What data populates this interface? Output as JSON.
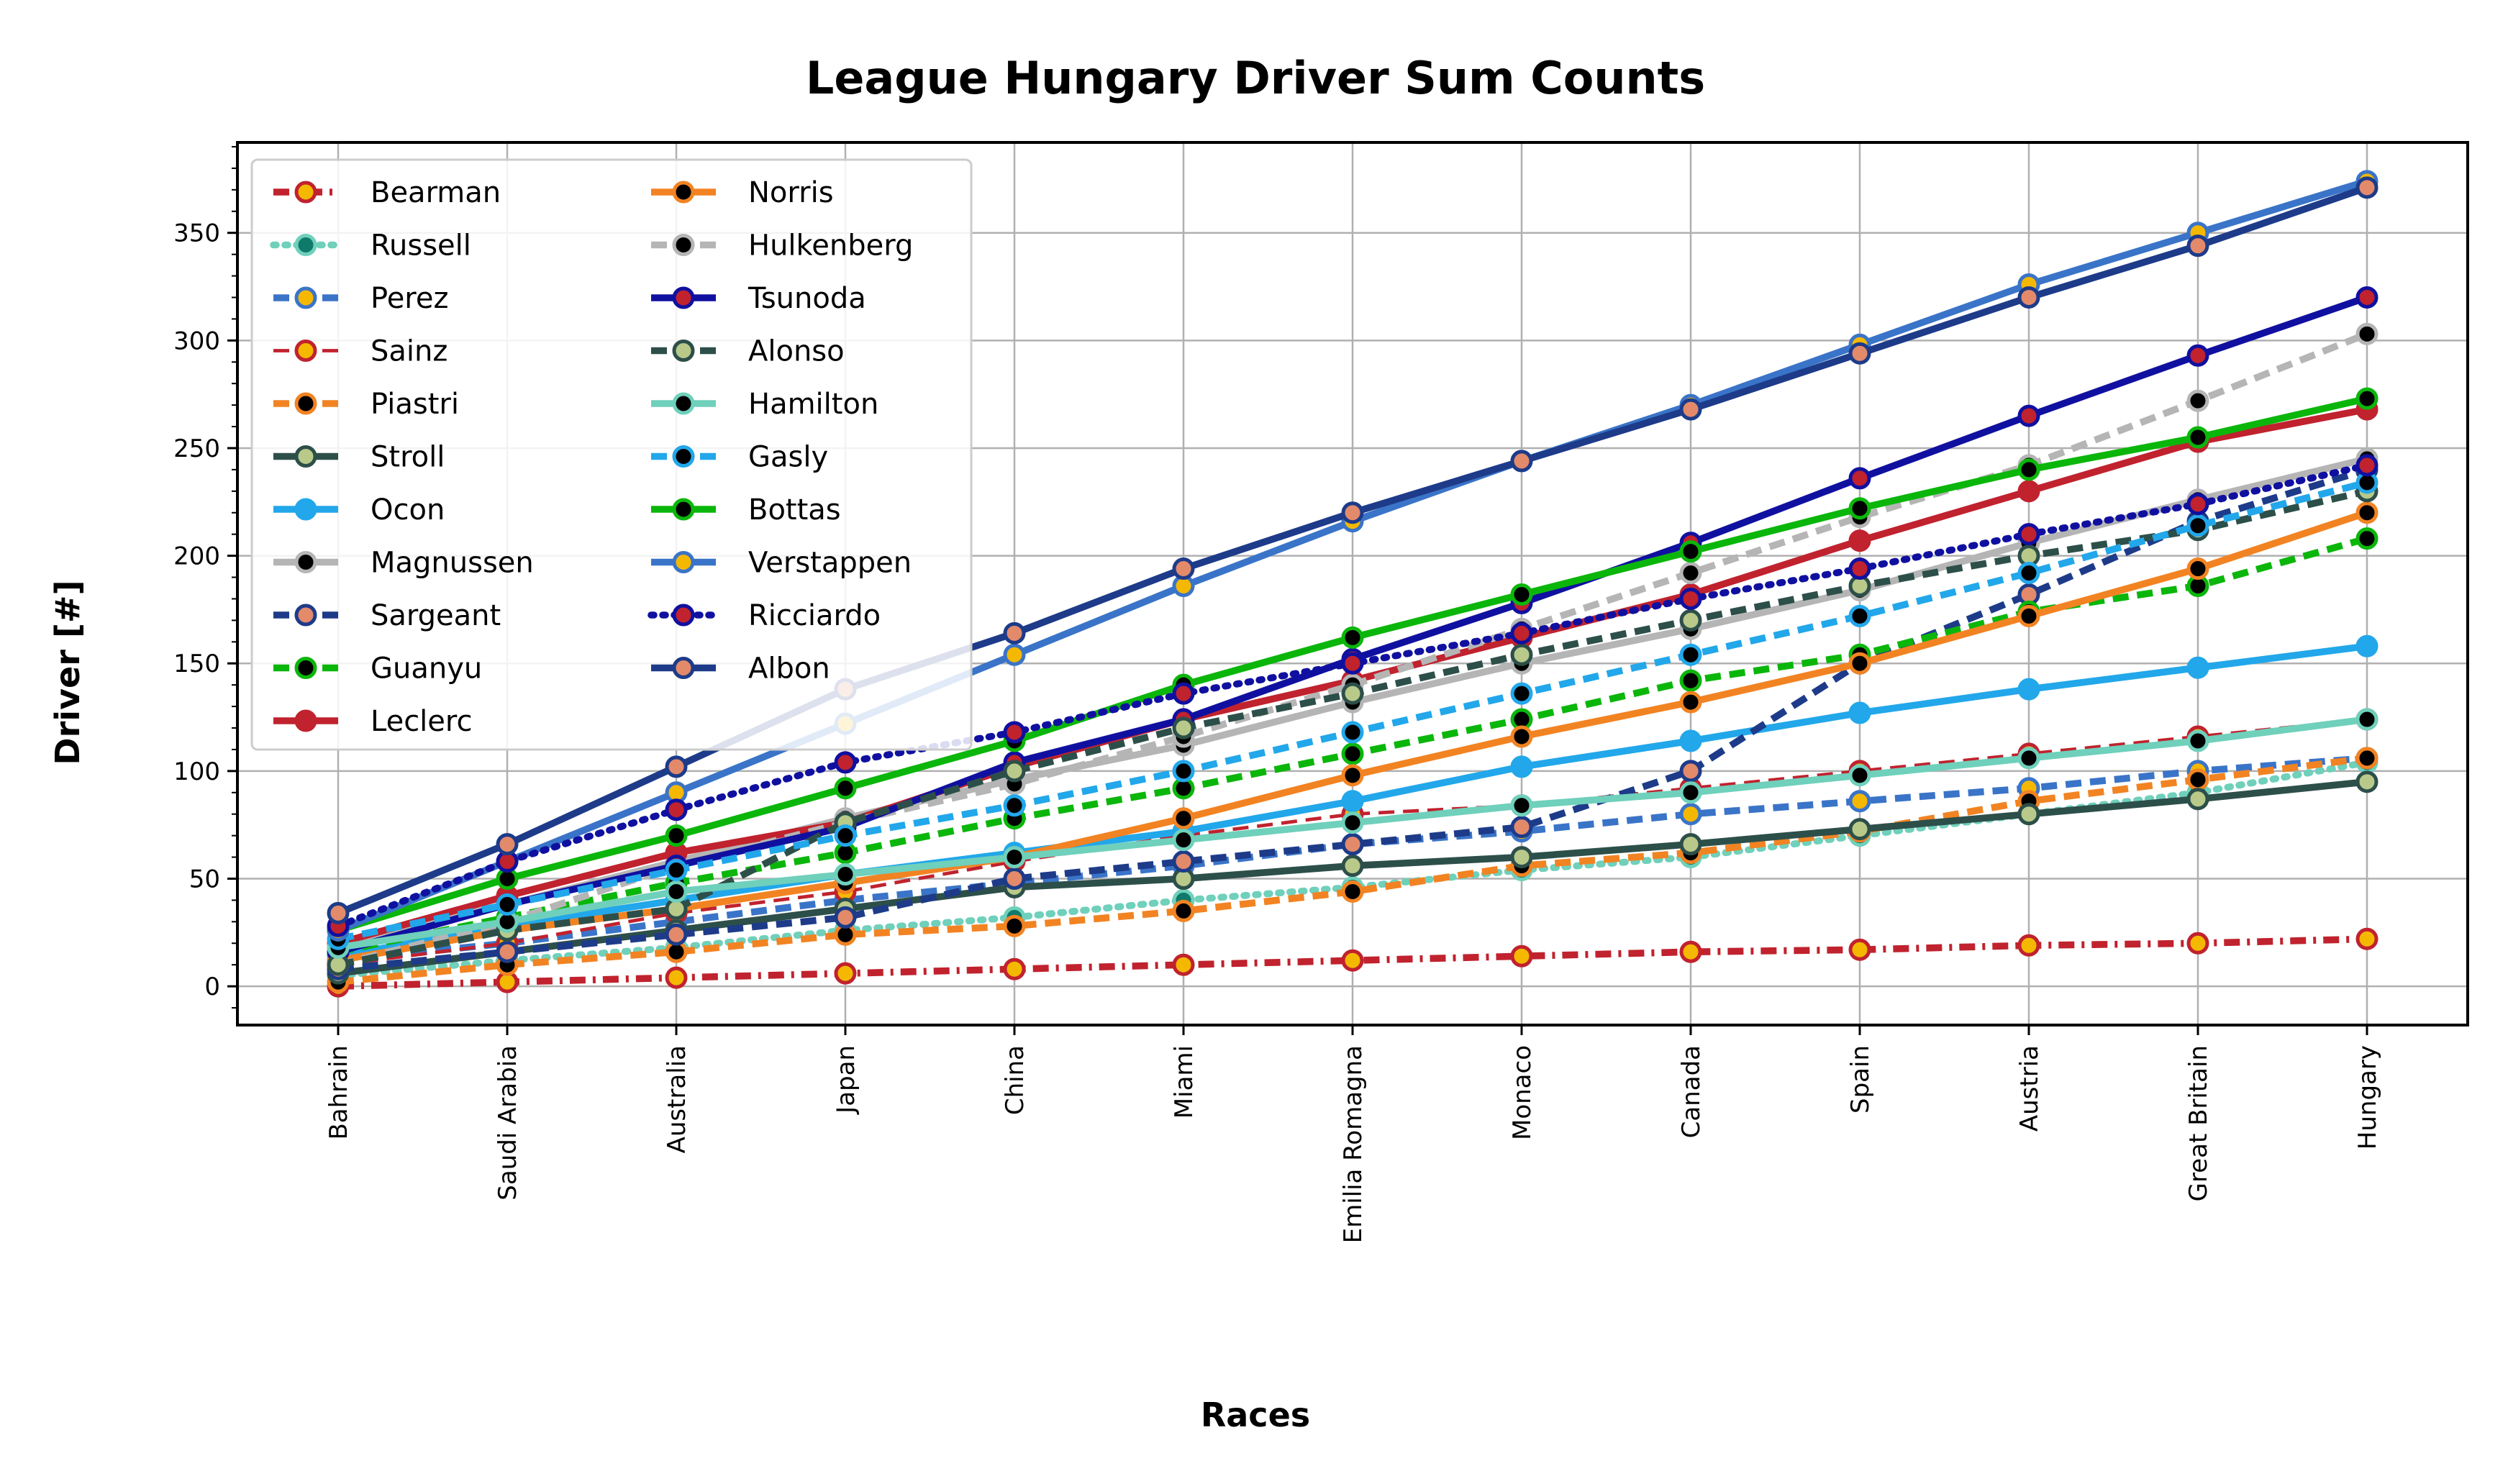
{
  "chart_data": {
    "type": "line",
    "title": "League Hungary Driver Sum Counts",
    "xlabel": "Races",
    "ylabel": "Driver [#]",
    "ylim": [
      -18,
      392
    ],
    "yticks": [
      0,
      50,
      100,
      150,
      200,
      250,
      300,
      350
    ],
    "grid": true,
    "legend_position": "top-left",
    "categories": [
      "Bahrain",
      "Saudi Arabia",
      "Australia",
      "Japan",
      "China",
      "Miami",
      "Emilia Romagna",
      "Monaco",
      "Canada",
      "Spain",
      "Austria",
      "Great Britain",
      "Hungary"
    ],
    "series": [
      {
        "name": "Bearman",
        "color": "#c0222e",
        "marker_fill": "#f5b800",
        "dash": "dashdot",
        "width": 3,
        "values": [
          0,
          2,
          4,
          6,
          8,
          10,
          12,
          14,
          16,
          17,
          19,
          20,
          22
        ]
      },
      {
        "name": "Russell",
        "color": "#6fd0bb",
        "marker_fill": "#0f7a6a",
        "dash": "dot",
        "width": 3,
        "values": [
          5,
          12,
          18,
          26,
          32,
          40,
          46,
          54,
          60,
          70,
          80,
          90,
          104
        ]
      },
      {
        "name": "Perez",
        "color": "#3a74c8",
        "marker_fill": "#f5b800",
        "dash": "dash",
        "width": 3,
        "values": [
          12,
          20,
          30,
          40,
          48,
          56,
          66,
          72,
          80,
          86,
          92,
          100,
          106
        ]
      },
      {
        "name": "Sainz",
        "color": "#c0222e",
        "marker_fill": "#f5b800",
        "dash": "dash",
        "width": 1.5,
        "values": [
          10,
          20,
          34,
          44,
          58,
          70,
          80,
          84,
          92,
          100,
          108,
          116,
          124
        ]
      },
      {
        "name": "Piastri",
        "color": "#f28322",
        "marker_fill": "#000000",
        "dash": "dash",
        "width": 3,
        "values": [
          2,
          10,
          16,
          24,
          28,
          35,
          44,
          56,
          62,
          72,
          86,
          96,
          106
        ]
      },
      {
        "name": "Stroll",
        "color": "#2d4f4a",
        "marker_fill": "#b8c98a",
        "dash": "solid",
        "width": 3,
        "values": [
          6,
          16,
          26,
          36,
          46,
          50,
          56,
          60,
          66,
          73,
          80,
          87,
          95
        ]
      },
      {
        "name": "Ocon",
        "color": "#22a7ea",
        "marker_fill": "#22a7ea",
        "dash": "solid",
        "width": 3,
        "values": [
          14,
          28,
          40,
          52,
          62,
          72,
          86,
          102,
          114,
          127,
          138,
          148,
          158
        ]
      },
      {
        "name": "Magnussen",
        "color": "#b5b5b5",
        "marker_fill": "#000000",
        "dash": "solid",
        "width": 3,
        "values": [
          20,
          38,
          58,
          78,
          96,
          112,
          132,
          150,
          166,
          184,
          206,
          226,
          245
        ]
      },
      {
        "name": "Sargeant",
        "color": "#1d3b89",
        "marker_fill": "#e38a6b",
        "dash": "dash",
        "width": 3,
        "values": [
          8,
          16,
          24,
          32,
          50,
          58,
          66,
          74,
          100,
          150,
          182,
          216,
          240
        ]
      },
      {
        "name": "Guanyu",
        "color": "#0bb60b",
        "marker_fill": "#000000",
        "dash": "dash",
        "width": 3,
        "values": [
          16,
          32,
          48,
          62,
          78,
          92,
          108,
          124,
          142,
          154,
          174,
          186,
          208
        ]
      },
      {
        "name": "Leclerc",
        "color": "#c0222e",
        "marker_fill": "#c0222e",
        "dash": "solid",
        "width": 3,
        "values": [
          20,
          42,
          62,
          76,
          102,
          124,
          142,
          162,
          182,
          207,
          230,
          253,
          268
        ]
      },
      {
        "name": "Norris",
        "color": "#f28322",
        "marker_fill": "#000000",
        "dash": "solid",
        "width": 3,
        "values": [
          12,
          26,
          36,
          48,
          60,
          78,
          98,
          116,
          132,
          150,
          172,
          194,
          220
        ]
      },
      {
        "name": "Hulkenberg",
        "color": "#b5b5b5",
        "marker_fill": "#000000",
        "dash": "dash",
        "width": 3,
        "values": [
          10,
          30,
          56,
          76,
          94,
          116,
          140,
          166,
          192,
          218,
          242,
          272,
          303
        ]
      },
      {
        "name": "Tsunoda",
        "color": "#1010a0",
        "marker_fill": "#c0222e",
        "dash": "solid",
        "width": 3,
        "values": [
          16,
          38,
          56,
          74,
          104,
          124,
          152,
          178,
          206,
          236,
          265,
          293,
          320
        ]
      },
      {
        "name": "Alonso",
        "color": "#2d4f4a",
        "marker_fill": "#b8c98a",
        "dash": "dash",
        "width": 3,
        "values": [
          10,
          26,
          36,
          76,
          100,
          120,
          136,
          154,
          170,
          186,
          200,
          212,
          230
        ]
      },
      {
        "name": "Hamilton",
        "color": "#6fd0bb",
        "marker_fill": "#000000",
        "dash": "solid",
        "width": 3,
        "values": [
          18,
          30,
          44,
          52,
          60,
          68,
          76,
          84,
          90,
          98,
          106,
          114,
          124
        ]
      },
      {
        "name": "Gasly",
        "color": "#22a7ea",
        "marker_fill": "#000000",
        "dash": "dash",
        "width": 3,
        "values": [
          22,
          38,
          54,
          70,
          84,
          100,
          118,
          136,
          154,
          172,
          192,
          214,
          234
        ]
      },
      {
        "name": "Bottas",
        "color": "#0bb60b",
        "marker_fill": "#000000",
        "dash": "solid",
        "width": 3,
        "values": [
          26,
          50,
          70,
          92,
          114,
          140,
          162,
          182,
          202,
          222,
          240,
          255,
          273
        ]
      },
      {
        "name": "Verstappen",
        "color": "#3a74c8",
        "marker_fill": "#f5b800",
        "dash": "solid",
        "width": 3,
        "values": [
          26,
          58,
          90,
          122,
          154,
          186,
          216,
          244,
          270,
          298,
          326,
          350,
          374
        ]
      },
      {
        "name": "Ricciardo",
        "color": "#1010a0",
        "marker_fill": "#c0222e",
        "dash": "dot",
        "width": 3,
        "values": [
          28,
          58,
          82,
          104,
          118,
          136,
          150,
          164,
          180,
          194,
          210,
          224,
          242
        ]
      },
      {
        "name": "Albon",
        "color": "#1d3b89",
        "marker_fill": "#e38a6b",
        "dash": "solid",
        "width": 3,
        "values": [
          34,
          66,
          102,
          138,
          164,
          194,
          220,
          244,
          268,
          294,
          320,
          344,
          371
        ]
      }
    ]
  }
}
